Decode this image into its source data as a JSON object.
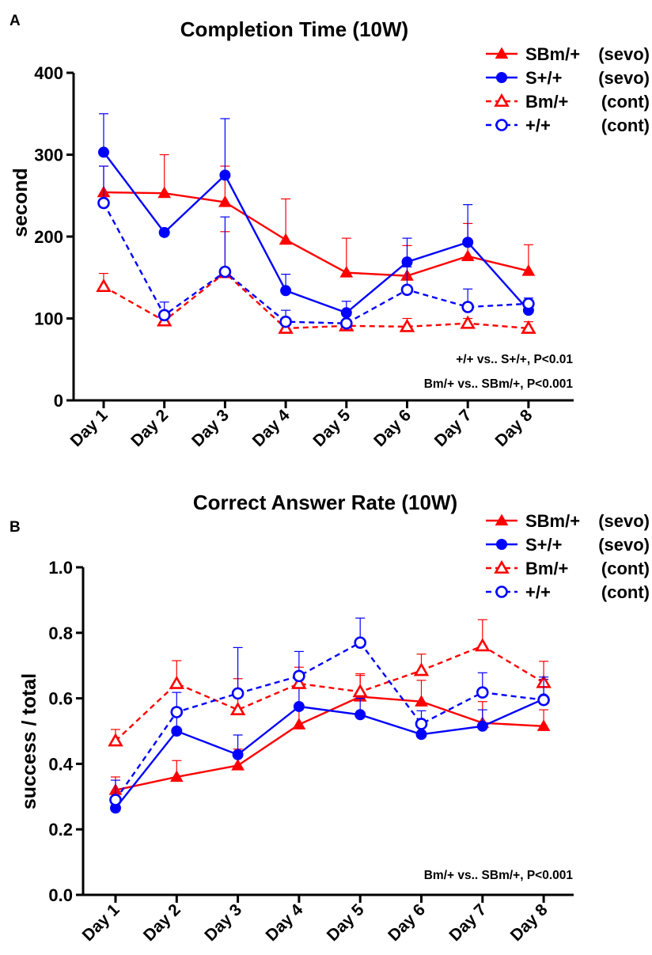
{
  "chart_data": [
    {
      "panel_label": "A",
      "type": "line",
      "title": "Completion Time (10W)",
      "ylabel": "second",
      "xlabel": "",
      "ylim": [
        0,
        400
      ],
      "yticks": [
        "0",
        "100",
        "200",
        "300",
        "400"
      ],
      "categories": [
        "Day 1",
        "Day 2",
        "Day 3",
        "Day 4",
        "Day 5",
        "Day 6",
        "Day 7",
        "Day 8"
      ],
      "series": [
        {
          "name": "SBm/+ (sevo)",
          "legend_name": "SBm/+",
          "legend_group": "(sevo)",
          "color": "#ff0000",
          "marker": "triangle-filled",
          "dash": "solid",
          "values": [
            254,
            253,
            242,
            196,
            156,
            152,
            176,
            158
          ],
          "errors": [
            32,
            47,
            44,
            50,
            42,
            37,
            40,
            32
          ]
        },
        {
          "name": "S+/+ (sevo)",
          "legend_name": "S+/+",
          "legend_group": "(sevo)",
          "color": "#0000ff",
          "marker": "circle-filled",
          "dash": "solid",
          "values": [
            303,
            205,
            275,
            134,
            107,
            169,
            193,
            110
          ],
          "errors": [
            47,
            0,
            69,
            20,
            14,
            29,
            46,
            0
          ]
        },
        {
          "name": "Bm/+ (cont)",
          "legend_name": "Bm/+",
          "legend_group": "(cont)",
          "color": "#ff0000",
          "marker": "triangle-open",
          "dash": "dashed",
          "values": [
            139,
            97,
            156,
            88,
            91,
            90,
            94,
            88
          ],
          "errors": [
            16,
            8,
            50,
            7,
            6,
            10,
            6,
            8
          ]
        },
        {
          "name": "+/+ (cont)",
          "legend_name": "+/+",
          "legend_group": "(cont)",
          "color": "#0000ff",
          "marker": "circle-open",
          "dash": "dashed",
          "values": [
            241,
            104,
            157,
            96,
            94,
            135,
            114,
            118
          ],
          "errors": [
            45,
            16,
            67,
            14,
            13,
            28,
            22,
            7
          ]
        }
      ],
      "annotations": [
        "+/+ vs.. S+/+, P<0.01",
        "Bm/+ vs.. SBm/+, P<0.001"
      ],
      "grid": false,
      "legend_position": "top-right"
    },
    {
      "panel_label": "B",
      "type": "line",
      "title": "Correct Answer Rate (10W)",
      "ylabel": "success / total",
      "xlabel": "",
      "ylim": [
        0,
        1.0
      ],
      "yticks": [
        "0.0",
        "0.2",
        "0.4",
        "0.6",
        "0.8",
        "1.0"
      ],
      "categories": [
        "Day 1",
        "Day 2",
        "Day 3",
        "Day 4",
        "Day 5",
        "Day 6",
        "Day 7",
        "Day 8"
      ],
      "series": [
        {
          "name": "SBm/+ (sevo)",
          "legend_name": "SBm/+",
          "legend_group": "(sevo)",
          "color": "#ff0000",
          "marker": "triangle-filled",
          "dash": "solid",
          "values": [
            0.32,
            0.36,
            0.395,
            0.52,
            0.605,
            0.59,
            0.525,
            0.515
          ],
          "errors": [
            0.04,
            0.05,
            0.05,
            0.05,
            0.07,
            0.065,
            0.065,
            0.05
          ]
        },
        {
          "name": "S+/+ (sevo)",
          "legend_name": "S+/+",
          "legend_group": "(sevo)",
          "color": "#0000ff",
          "marker": "circle-filled",
          "dash": "solid",
          "values": [
            0.265,
            0.5,
            0.428,
            0.575,
            0.55,
            0.49,
            0.515,
            0.598
          ],
          "errors": [
            0.03,
            0.07,
            0.06,
            0.06,
            0.05,
            0.04,
            0.05,
            0.06
          ]
        },
        {
          "name": "Bm/+ (cont)",
          "legend_name": "Bm/+",
          "legend_group": "(cont)",
          "color": "#ff0000",
          "marker": "triangle-open",
          "dash": "dashed",
          "values": [
            0.47,
            0.645,
            0.565,
            0.645,
            0.62,
            0.685,
            0.76,
            0.648
          ],
          "errors": [
            0.035,
            0.07,
            0.095,
            0.05,
            0.05,
            0.05,
            0.08,
            0.065
          ]
        },
        {
          "name": "+/+ (cont)",
          "legend_name": "+/+",
          "legend_group": "(cont)",
          "color": "#0000ff",
          "marker": "circle-open",
          "dash": "dashed",
          "values": [
            0.29,
            0.558,
            0.615,
            0.668,
            0.77,
            0.522,
            0.618,
            0.595
          ],
          "errors": [
            0.06,
            0.06,
            0.14,
            0.075,
            0.075,
            0.04,
            0.06,
            0.07
          ]
        }
      ],
      "annotations": [
        "Bm/+ vs.. SBm/+, P<0.001"
      ],
      "grid": false,
      "legend_position": "top-right"
    }
  ]
}
